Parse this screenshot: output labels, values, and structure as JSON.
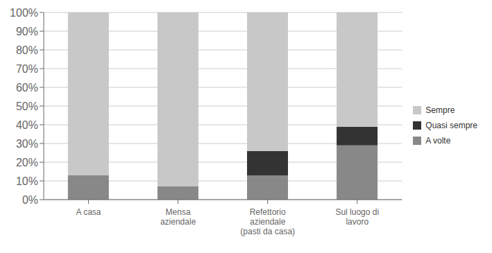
{
  "chart_data": {
    "type": "bar",
    "stacked": true,
    "categories": [
      "A casa",
      "Mensa\naziendale",
      "Refettorio\naziendale\n(pasti da casa)",
      "Sul luogo di\nlavoro"
    ],
    "series": [
      {
        "name": "A volte",
        "color": "#888888",
        "values": [
          13,
          7,
          13,
          29
        ]
      },
      {
        "name": "Quasi sempre",
        "color": "#333333",
        "values": [
          0,
          0,
          13,
          10
        ]
      },
      {
        "name": "Sempre",
        "color": "#c8c8c8",
        "values": [
          87,
          93,
          74,
          61
        ]
      }
    ],
    "ylim": [
      0,
      100
    ],
    "yticks": [
      {
        "value": 0,
        "label": "0%"
      },
      {
        "value": 10,
        "label": "10%"
      },
      {
        "value": 20,
        "label": "20%"
      },
      {
        "value": 30,
        "label": "30%"
      },
      {
        "value": 40,
        "label": "40%"
      },
      {
        "value": 50,
        "label": "50%"
      },
      {
        "value": 60,
        "label": "60%"
      },
      {
        "value": 70,
        "label": "70%"
      },
      {
        "value": 80,
        "label": "80%"
      },
      {
        "value": 90,
        "label": "90%"
      },
      {
        "value": 100,
        "label": "100%"
      }
    ],
    "grid": true,
    "legend": "right"
  }
}
